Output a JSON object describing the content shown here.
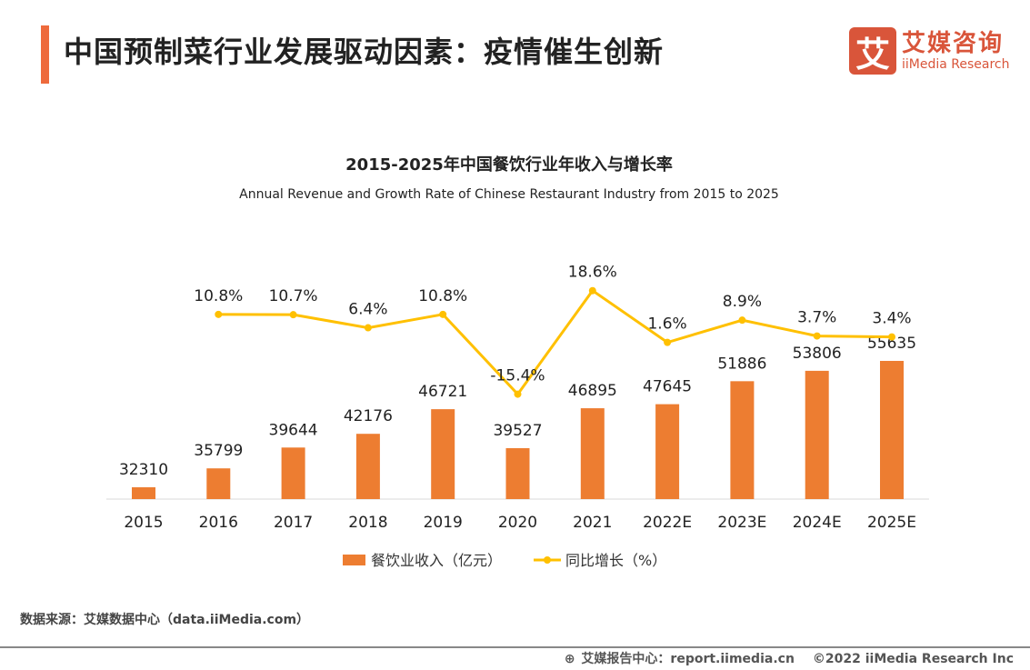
{
  "header": {
    "title": "中国预制菜行业发展驱动因素：疫情催生创新",
    "logo_cn": "艾媒咨询",
    "logo_en": "iiMedia Research",
    "logo_mark": "艾"
  },
  "chart_data": {
    "type": "bar+line",
    "title": "2015-2025年中国餐饮行业年收入与增长率",
    "subtitle": "Annual Revenue and Growth Rate of Chinese Restaurant Industry from 2015 to 2025",
    "categories": [
      "2015",
      "2016",
      "2017",
      "2018",
      "2019",
      "2020",
      "2021",
      "2022E",
      "2023E",
      "2024E",
      "2025E"
    ],
    "series": [
      {
        "name": "餐饮业收入（亿元）",
        "type": "bar",
        "color": "#ed7d31",
        "values": [
          32310,
          35799,
          39644,
          42176,
          46721,
          39527,
          46895,
          47645,
          51886,
          53806,
          55635
        ],
        "labels": [
          "32310",
          "35799",
          "39644",
          "42176",
          "46721",
          "39527",
          "46895",
          "47645",
          "51886",
          "53806",
          "55635"
        ]
      },
      {
        "name": "同比增长（%）",
        "type": "line",
        "color": "#ffc000",
        "values": [
          null,
          10.8,
          10.7,
          6.4,
          10.8,
          -15.4,
          18.6,
          1.6,
          8.9,
          3.7,
          3.4
        ],
        "labels": [
          "",
          "10.8%",
          "10.7%",
          "6.4%",
          "10.8%",
          "-15.4%",
          "18.6%",
          "1.6%",
          "8.9%",
          "3.7%",
          "3.4%"
        ]
      }
    ],
    "legend": "bottom",
    "grid": false
  },
  "source": "数据来源：艾媒数据中心（data.iiMedia.com）",
  "footer": {
    "report": "艾媒报告中心：report.iimedia.cn",
    "copyright": "©2022  iiMedia Research  Inc",
    "globe_icon": "globe-icon"
  }
}
